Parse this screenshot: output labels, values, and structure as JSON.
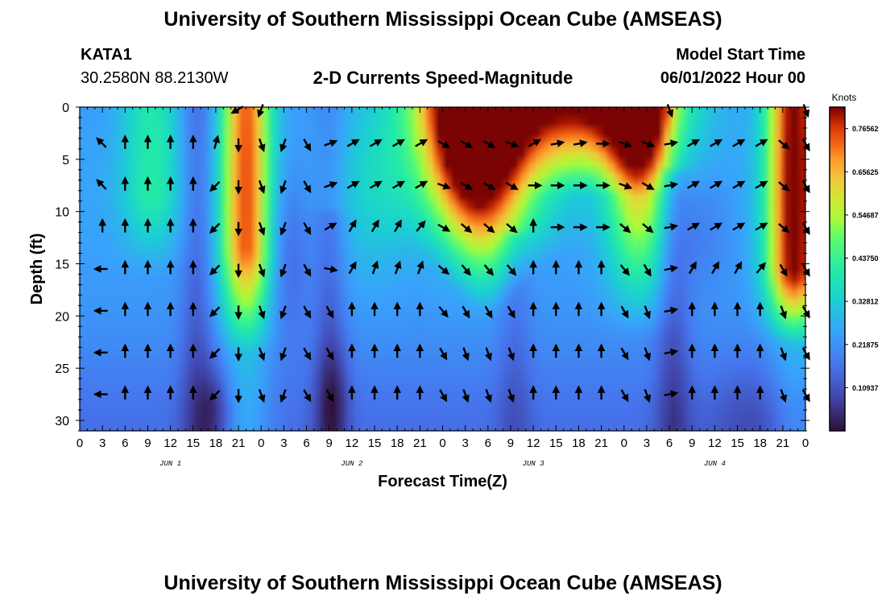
{
  "title": "University of Southern Mississippi Ocean Cube (AMSEAS)",
  "footer_title": "University of Southern Mississippi Ocean Cube (AMSEAS)",
  "station": {
    "id": "KATA1",
    "coords": "30.2580N  88.2130W"
  },
  "subtitle": "2-D Currents Speed-Magnitude",
  "model_start": {
    "label": "Model Start Time",
    "value": "06/01/2022 Hour 00"
  },
  "chart_data": {
    "type": "heatmap",
    "title": "2-D Currents Speed-Magnitude",
    "xlabel": "Forecast Time(Z)",
    "ylabel": "Depth (ft)",
    "xlim": [
      0,
      96
    ],
    "ylim": [
      31,
      0
    ],
    "xticks": [
      0,
      3,
      6,
      9,
      12,
      15,
      18,
      21,
      24,
      27,
      30,
      33,
      36,
      39,
      42,
      45,
      48,
      51,
      54,
      57,
      60,
      63,
      66,
      69,
      72,
      75,
      78,
      81,
      84,
      87,
      90,
      93,
      96
    ],
    "xtick_labels": [
      "0",
      "3",
      "6",
      "9",
      "12",
      "15",
      "18",
      "21",
      "0",
      "3",
      "6",
      "9",
      "12",
      "15",
      "18",
      "21",
      "0",
      "3",
      "6",
      "9",
      "12",
      "15",
      "18",
      "21",
      "0",
      "3",
      "6",
      "9",
      "12",
      "15",
      "18",
      "21",
      "0"
    ],
    "yticks": [
      0,
      5,
      10,
      15,
      20,
      25,
      30
    ],
    "ytick_labels": [
      "0",
      "5",
      "10",
      "15",
      "20",
      "25",
      "30"
    ],
    "day_labels": [
      {
        "x": 12,
        "text": "JUN 1"
      },
      {
        "x": 36,
        "text": "JUN 2"
      },
      {
        "x": 60,
        "text": "JUN 3"
      },
      {
        "x": 84,
        "text": "JUN 4"
      }
    ],
    "colorbar": {
      "label": "Knots",
      "min": 0.0,
      "max": 0.82,
      "ticks": [
        0.10937,
        0.21875,
        0.32812,
        0.4375,
        0.54687,
        0.65625,
        0.76562
      ],
      "tick_labels": [
        "0.10937",
        "0.21875",
        "0.32812",
        "0.43750",
        "0.54687",
        "0.65625",
        "0.76562"
      ]
    },
    "arrow_depths": [
      0.2,
      3.5,
      7.5,
      11.5,
      15.5,
      19.5,
      23.5,
      27.5
    ],
    "vector_columns": [
      {
        "t": 3,
        "dirs": [
          null,
          315,
          315,
          0,
          270,
          270,
          270,
          270
        ]
      },
      {
        "t": 6,
        "dirs": [
          null,
          0,
          0,
          0,
          0,
          0,
          0,
          0
        ]
      },
      {
        "t": 9,
        "dirs": [
          null,
          0,
          0,
          0,
          0,
          0,
          0,
          0
        ]
      },
      {
        "t": 12,
        "dirs": [
          null,
          0,
          0,
          0,
          0,
          0,
          0,
          0
        ]
      },
      {
        "t": 15,
        "dirs": [
          null,
          0,
          0,
          0,
          0,
          0,
          0,
          0
        ]
      },
      {
        "t": 18,
        "dirs": [
          null,
          15,
          225,
          225,
          225,
          225,
          225,
          225
        ]
      },
      {
        "t": 21,
        "dirs": [
          240,
          180,
          180,
          180,
          180,
          180,
          180,
          180
        ]
      },
      {
        "t": 24,
        "dirs": [
          200,
          160,
          160,
          160,
          160,
          160,
          160,
          160
        ]
      },
      {
        "t": 27,
        "dirs": [
          null,
          200,
          200,
          200,
          200,
          200,
          200,
          200
        ]
      },
      {
        "t": 30,
        "dirs": [
          null,
          150,
          150,
          150,
          150,
          150,
          150,
          150
        ]
      },
      {
        "t": 33,
        "dirs": [
          null,
          70,
          70,
          60,
          100,
          150,
          150,
          150
        ]
      },
      {
        "t": 36,
        "dirs": [
          null,
          60,
          60,
          30,
          30,
          0,
          0,
          0
        ]
      },
      {
        "t": 39,
        "dirs": [
          null,
          60,
          60,
          30,
          20,
          0,
          0,
          0
        ]
      },
      {
        "t": 42,
        "dirs": [
          null,
          60,
          60,
          30,
          20,
          0,
          0,
          0
        ]
      },
      {
        "t": 45,
        "dirs": [
          null,
          60,
          60,
          40,
          20,
          0,
          0,
          0
        ]
      },
      {
        "t": 48,
        "dirs": [
          null,
          120,
          110,
          120,
          130,
          140,
          150,
          150
        ]
      },
      {
        "t": 51,
        "dirs": [
          null,
          120,
          120,
          130,
          140,
          150,
          160,
          160
        ]
      },
      {
        "t": 54,
        "dirs": [
          null,
          120,
          120,
          130,
          140,
          150,
          160,
          160
        ]
      },
      {
        "t": 57,
        "dirs": [
          null,
          110,
          120,
          130,
          140,
          150,
          160,
          160
        ]
      },
      {
        "t": 60,
        "dirs": [
          null,
          60,
          90,
          0,
          0,
          0,
          0,
          0
        ]
      },
      {
        "t": 63,
        "dirs": [
          null,
          80,
          90,
          90,
          0,
          0,
          0,
          0
        ]
      },
      {
        "t": 66,
        "dirs": [
          null,
          80,
          90,
          90,
          0,
          0,
          0,
          0
        ]
      },
      {
        "t": 69,
        "dirs": [
          null,
          90,
          90,
          90,
          0,
          0,
          0,
          0
        ]
      },
      {
        "t": 72,
        "dirs": [
          null,
          110,
          110,
          130,
          140,
          150,
          150,
          150
        ]
      },
      {
        "t": 75,
        "dirs": [
          null,
          110,
          120,
          130,
          150,
          160,
          160,
          160
        ]
      },
      {
        "t": 78,
        "dirs": [
          160,
          80,
          80,
          80,
          80,
          80,
          80,
          80
        ]
      },
      {
        "t": 81,
        "dirs": [
          null,
          60,
          60,
          60,
          30,
          0,
          0,
          0
        ]
      },
      {
        "t": 84,
        "dirs": [
          null,
          60,
          60,
          60,
          30,
          0,
          0,
          0
        ]
      },
      {
        "t": 87,
        "dirs": [
          null,
          60,
          60,
          60,
          30,
          0,
          0,
          0
        ]
      },
      {
        "t": 90,
        "dirs": [
          null,
          60,
          60,
          60,
          40,
          0,
          0,
          0
        ]
      },
      {
        "t": 93,
        "dirs": [
          null,
          130,
          130,
          130,
          150,
          160,
          160,
          160
        ]
      },
      {
        "t": 96,
        "dirs": [
          160,
          150,
          150,
          150,
          150,
          150,
          150,
          150
        ]
      }
    ]
  }
}
